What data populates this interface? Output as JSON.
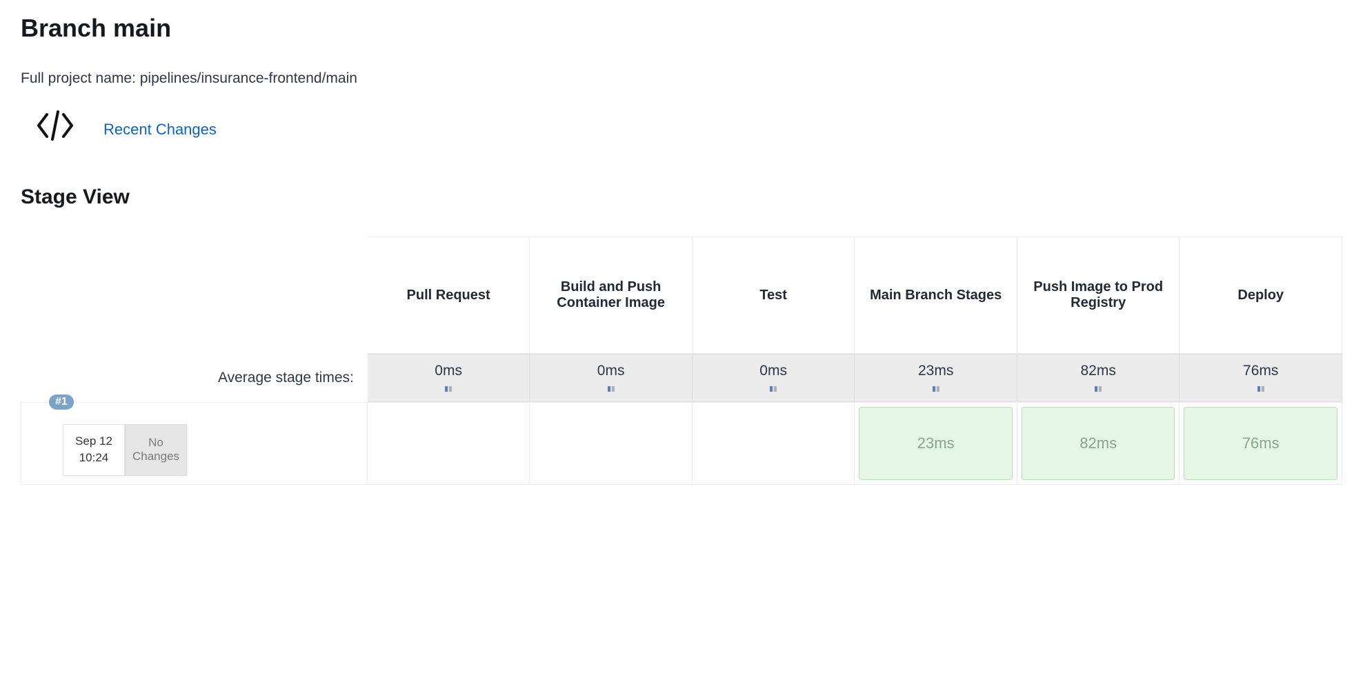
{
  "title": "Branch main",
  "project_label": "Full project name: pipelines/insurance-frontend/main",
  "recent_changes_label": "Recent Changes",
  "stage_view_label": "Stage View",
  "avg_stage_label": "Average stage times:",
  "stages": [
    {
      "name": "Pull Request",
      "avg": "0ms"
    },
    {
      "name": "Build and Push Container Image",
      "avg": "0ms"
    },
    {
      "name": "Test",
      "avg": "0ms"
    },
    {
      "name": "Main Branch Stages",
      "avg": "23ms"
    },
    {
      "name": "Push Image to Prod Registry",
      "avg": "82ms"
    },
    {
      "name": "Deploy",
      "avg": "76ms"
    }
  ],
  "runs": [
    {
      "number": "#1",
      "date": "Sep 12",
      "time": "10:24",
      "changes": "No Changes",
      "cells": [
        {
          "status": "empty",
          "text": ""
        },
        {
          "status": "empty",
          "text": ""
        },
        {
          "status": "empty",
          "text": ""
        },
        {
          "status": "success",
          "text": "23ms"
        },
        {
          "status": "success",
          "text": "82ms"
        },
        {
          "status": "success",
          "text": "76ms"
        }
      ]
    }
  ],
  "colors": {
    "link": "#0b63ce",
    "success_bg": "#e7f7e6",
    "success_border": "#b7e1b1",
    "success_text": "#8aa58c",
    "badge_bg": "#7aa3c7",
    "avg_row_bg": "#ececec"
  }
}
